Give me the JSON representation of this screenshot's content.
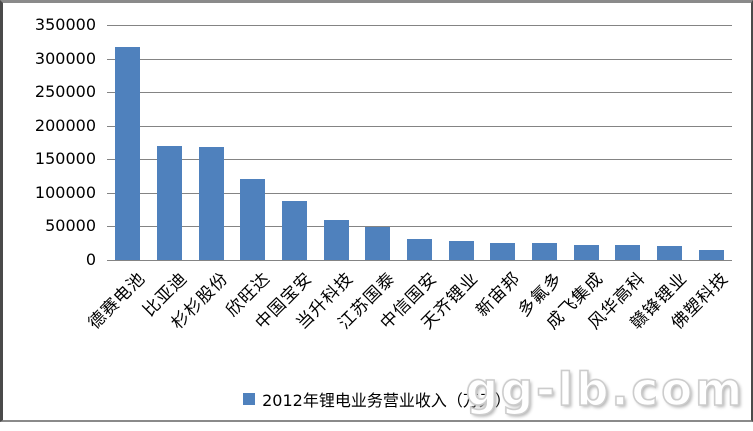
{
  "chart_data": {
    "type": "bar",
    "title": "",
    "xlabel": "",
    "ylabel": "",
    "categories": [
      "德赛电池",
      "比亚迪",
      "杉杉股份",
      "欣旺达",
      "中国宝安",
      "当升科技",
      "江苏国泰",
      "中信国安",
      "天齐锂业",
      "新宙邦",
      "多氟多",
      "成飞集成",
      "风华高科",
      "赣锋锂业",
      "佛塑科技"
    ],
    "series": [
      {
        "name": "2012年锂电业务营业收入（万元）",
        "values": [
          318000,
          170000,
          168000,
          120000,
          88000,
          60000,
          49000,
          32000,
          29000,
          26000,
          25000,
          23000,
          23000,
          21000,
          15000
        ]
      }
    ],
    "ylim": [
      0,
      350000
    ],
    "yticks": [
      0,
      50000,
      100000,
      150000,
      200000,
      250000,
      300000,
      350000
    ],
    "grid": true,
    "legend_position": "bottom",
    "bar_color": "#4F81BD",
    "gridline_color": "#848484"
  },
  "legend": {
    "marker_color": "#4F81BD",
    "label": "2012年锂电业务营业收入（万元）"
  },
  "watermark": {
    "text": "gg-lb.com"
  }
}
